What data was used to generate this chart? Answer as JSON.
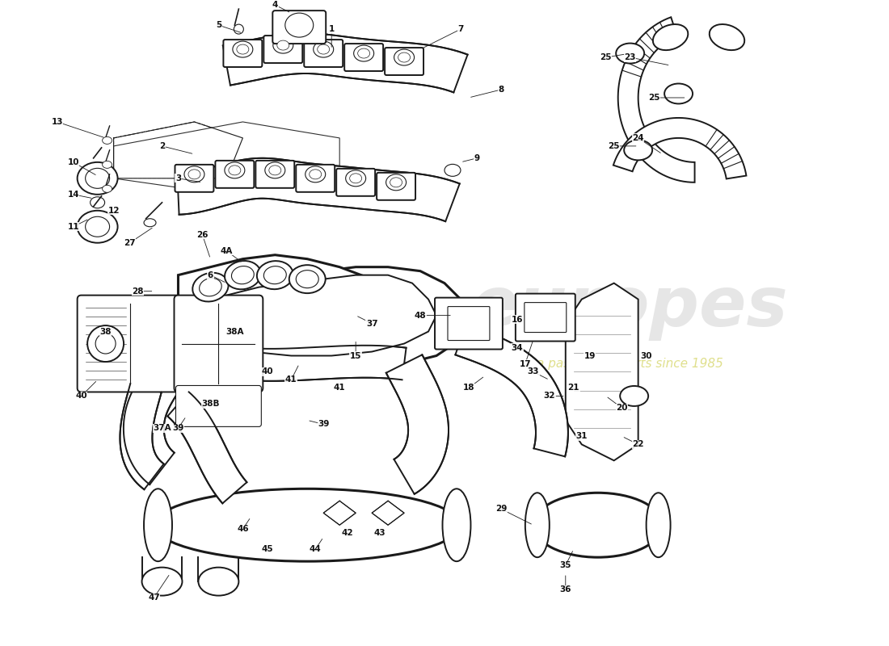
{
  "bg": "#ffffff",
  "lc": "#1a1a1a",
  "lw1": 1.4,
  "lw2": 0.8,
  "lw3": 2.2,
  "fs": 7.5,
  "wm1": "europes",
  "wm2": "a passion for parts since 1985",
  "wm_c1": "#cecece",
  "wm_c2": "#d8d870",
  "fig_w": 11.0,
  "fig_h": 8.0,
  "xlim": [
    0,
    110
  ],
  "ylim": [
    0,
    80
  ]
}
